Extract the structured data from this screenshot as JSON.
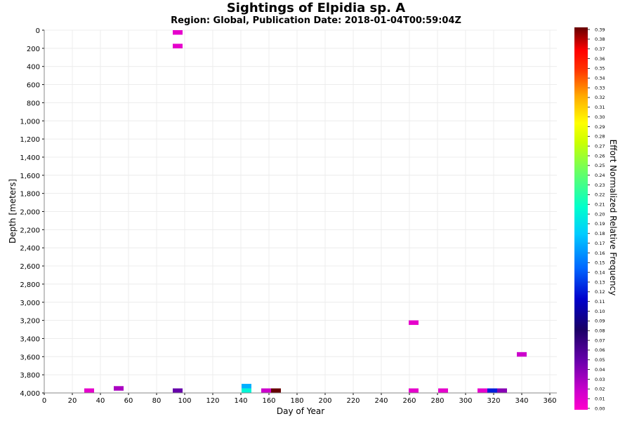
{
  "chart_data": {
    "type": "heatmap",
    "title": "Sightings of Elpidia sp. A",
    "subtitle": "Region: Global, Publication Date: 2018-01-04T00:59:04Z",
    "xlabel": "Day of Year",
    "ylabel": "Depth [meters]",
    "colorbar_label": "Effort Normalized Relative Frequency",
    "xlim": [
      0,
      365
    ],
    "ylim": [
      4000,
      0
    ],
    "x_ticks": [
      "0",
      "20",
      "40",
      "60",
      "80",
      "100",
      "120",
      "140",
      "160",
      "180",
      "200",
      "220",
      "240",
      "260",
      "280",
      "300",
      "320",
      "340",
      "360"
    ],
    "y_ticks": [
      "0",
      "200",
      "400",
      "600",
      "800",
      "1,000",
      "1,200",
      "1,400",
      "1,600",
      "1,800",
      "2,000",
      "2,200",
      "2,400",
      "2,600",
      "2,800",
      "3,000",
      "3,200",
      "3,400",
      "3,600",
      "3,800",
      "4,000"
    ],
    "colorbar_range": [
      0,
      0.39
    ],
    "colorbar_ticks": [
      "0.00",
      "0.01",
      "0.02",
      "0.03",
      "0.04",
      "0.05",
      "0.06",
      "0.07",
      "0.08",
      "0.09",
      "0.10",
      "0.11",
      "0.12",
      "0.13",
      "0.14",
      "0.15",
      "0.16",
      "0.17",
      "0.18",
      "0.19",
      "0.20",
      "0.21",
      "0.22",
      "0.23",
      "0.24",
      "0.25",
      "0.26",
      "0.27",
      "0.28",
      "0.29",
      "0.30",
      "0.31",
      "0.32",
      "0.33",
      "0.34",
      "0.35",
      "0.36",
      "0.37",
      "0.38",
      "0.39"
    ],
    "grid": true,
    "legend": "colorbar-right",
    "cells": [
      {
        "day": 95,
        "depth": 25,
        "value": 0.01
      },
      {
        "day": 95,
        "depth": 175,
        "value": 0.01
      },
      {
        "day": 32,
        "depth": 3975,
        "value": 0.01
      },
      {
        "day": 53,
        "depth": 3950,
        "value": 0.03
      },
      {
        "day": 95,
        "depth": 3975,
        "value": 0.05
      },
      {
        "day": 144,
        "depth": 3925,
        "value": 0.17
      },
      {
        "day": 144,
        "depth": 3975,
        "value": 0.2
      },
      {
        "day": 158,
        "depth": 3975,
        "value": 0.02
      },
      {
        "day": 165,
        "depth": 3975,
        "value": 0.39
      },
      {
        "day": 263,
        "depth": 3225,
        "value": 0.01
      },
      {
        "day": 263,
        "depth": 3975,
        "value": 0.01
      },
      {
        "day": 284,
        "depth": 3975,
        "value": 0.01
      },
      {
        "day": 312,
        "depth": 3975,
        "value": 0.01
      },
      {
        "day": 319,
        "depth": 3975,
        "value": 0.12
      },
      {
        "day": 326,
        "depth": 3975,
        "value": 0.04
      },
      {
        "day": 340,
        "depth": 3575,
        "value": 0.02
      }
    ]
  }
}
